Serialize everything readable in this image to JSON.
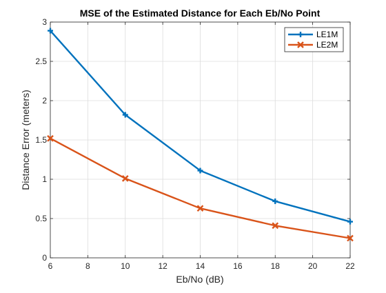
{
  "chart_data": {
    "type": "line",
    "title": "MSE of the Estimated Distance for Each Eb/No Point",
    "xlabel": "Eb/No (dB)",
    "ylabel": "Distance Error (meters)",
    "x": [
      6,
      10,
      14,
      18,
      22
    ],
    "xlim": [
      6,
      22
    ],
    "ylim": [
      0,
      3
    ],
    "xticks": [
      6,
      8,
      10,
      12,
      14,
      16,
      18,
      20,
      22
    ],
    "yticks": [
      0,
      0.5,
      1,
      1.5,
      2,
      2.5,
      3
    ],
    "xtick_labels": [
      "6",
      "8",
      "10",
      "12",
      "14",
      "16",
      "18",
      "20",
      "22"
    ],
    "ytick_labels": [
      "0",
      "0.5",
      "1",
      "1.5",
      "2",
      "2.5",
      "3"
    ],
    "grid": true,
    "legend_position": "top-right",
    "series": [
      {
        "name": "LE1M",
        "values": [
          2.89,
          1.82,
          1.11,
          0.72,
          0.46
        ],
        "color": "#0072BD",
        "marker": "plus"
      },
      {
        "name": "LE2M",
        "values": [
          1.52,
          1.01,
          0.63,
          0.41,
          0.25
        ],
        "color": "#D95319",
        "marker": "x"
      }
    ]
  }
}
